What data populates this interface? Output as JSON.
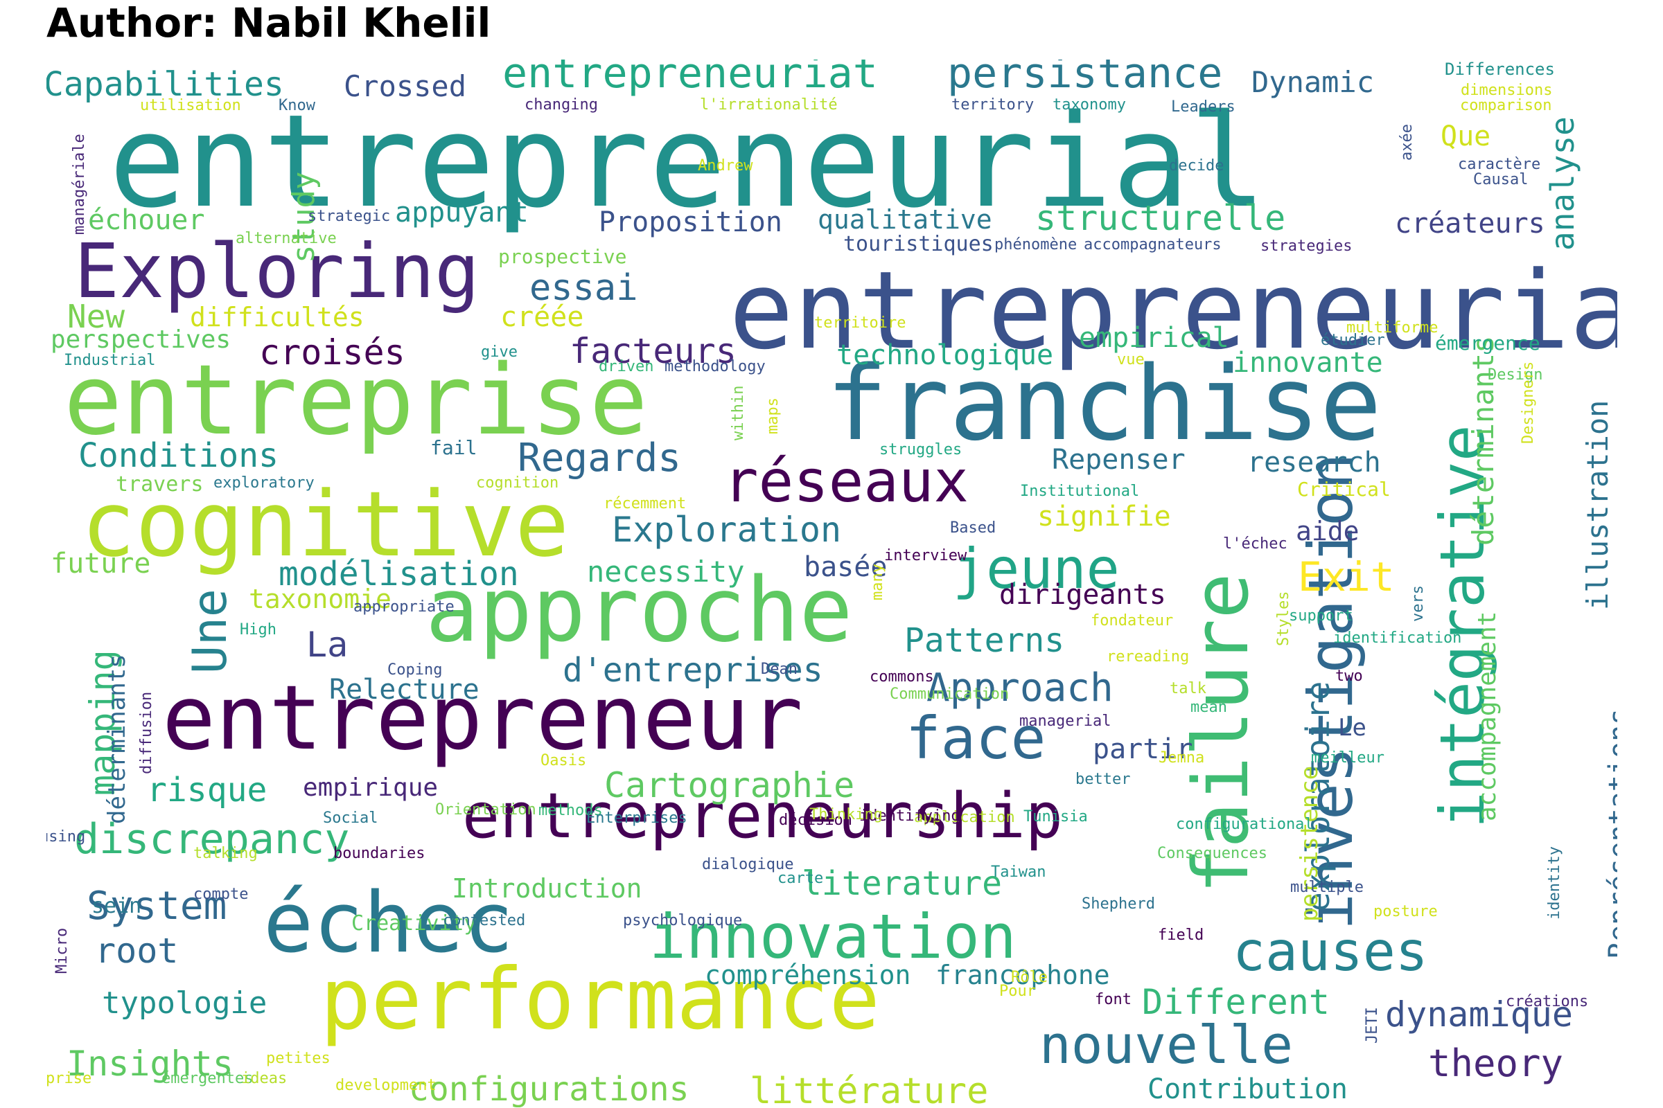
{
  "title": "Author: Nabil Khelil",
  "words": [
    {
      "text": "entrepreneurial",
      "color": "#21918c"
    },
    {
      "text": "entrepreneuriale",
      "color": "#3b528b"
    },
    {
      "text": "franchise",
      "color": "#2c728e"
    },
    {
      "text": "entreprise",
      "color": "#7ad151"
    },
    {
      "text": "cognitive",
      "color": "#b5de2b"
    },
    {
      "text": "approche",
      "color": "#5ec962"
    },
    {
      "text": "entrepreneur",
      "color": "#440154"
    },
    {
      "text": "performance",
      "color": "#d0e11c"
    },
    {
      "text": "échec",
      "color": "#2a788e"
    },
    {
      "text": "failure",
      "color": "#3fbc73"
    },
    {
      "text": "Exploring",
      "color": "#482878"
    },
    {
      "text": "entrepreneurship",
      "color": "#440154"
    },
    {
      "text": "innovation",
      "color": "#35b779"
    },
    {
      "text": "investigation",
      "color": "#31688e"
    },
    {
      "text": "intégrative",
      "color": "#22a884"
    },
    {
      "text": "réseaux",
      "color": "#440154"
    },
    {
      "text": "face",
      "color": "#31688e"
    },
    {
      "text": "jeune",
      "color": "#20a486"
    },
    {
      "text": "causes",
      "color": "#26828e"
    },
    {
      "text": "nouvelle",
      "color": "#2c728e"
    },
    {
      "text": "entrepreneuriat",
      "color": "#22a884"
    },
    {
      "text": "persistance",
      "color": "#2a788e"
    },
    {
      "text": "Capabilities",
      "color": "#21918c"
    },
    {
      "text": "Crossed",
      "color": "#3b528b"
    },
    {
      "text": "Dynamic",
      "color": "#31688e"
    },
    {
      "text": "analyse",
      "color": "#21918c"
    },
    {
      "text": "Que",
      "color": "#d0e11c"
    },
    {
      "text": "structurelle",
      "color": "#35b779"
    },
    {
      "text": "qualitative",
      "color": "#2a788e"
    },
    {
      "text": "créateurs",
      "color": "#414487"
    },
    {
      "text": "Proposition",
      "color": "#3b528b"
    },
    {
      "text": "appuyant",
      "color": "#21918c"
    },
    {
      "text": "échouer",
      "color": "#5ec962"
    },
    {
      "text": "study",
      "color": "#5ec962"
    },
    {
      "text": "essai",
      "color": "#31688e"
    },
    {
      "text": "New",
      "color": "#7ad151"
    },
    {
      "text": "difficultés",
      "color": "#d0e11c"
    },
    {
      "text": "créée",
      "color": "#d0e11c"
    },
    {
      "text": "perspectives",
      "color": "#5ec962"
    },
    {
      "text": "croisés",
      "color": "#440154"
    },
    {
      "text": "facteurs",
      "color": "#482878"
    },
    {
      "text": "technologique",
      "color": "#22a884"
    },
    {
      "text": "empirical",
      "color": "#35b779"
    },
    {
      "text": "innovante",
      "color": "#35b779"
    },
    {
      "text": "déterminants",
      "color": "#5ec962"
    },
    {
      "text": "illustration",
      "color": "#2c728e"
    },
    {
      "text": "Conditions",
      "color": "#21918c"
    },
    {
      "text": "Regards",
      "color": "#31688e"
    },
    {
      "text": "Repenser",
      "color": "#2c728e"
    },
    {
      "text": "research",
      "color": "#2c728e"
    },
    {
      "text": "Exploration",
      "color": "#2a788e"
    },
    {
      "text": "signifie",
      "color": "#d0e11c"
    },
    {
      "text": "aide",
      "color": "#414487"
    },
    {
      "text": "Exit",
      "color": "#fde725"
    },
    {
      "text": "future",
      "color": "#7ad151"
    },
    {
      "text": "modélisation",
      "color": "#21918c"
    },
    {
      "text": "necessity",
      "color": "#35b779"
    },
    {
      "text": "basée",
      "color": "#3b528b"
    },
    {
      "text": "dirigeants",
      "color": "#440154"
    },
    {
      "text": "Une",
      "color": "#26828e"
    },
    {
      "text": "taxonomie",
      "color": "#b5de2b"
    },
    {
      "text": "La",
      "color": "#414487"
    },
    {
      "text": "Patterns",
      "color": "#21918c"
    },
    {
      "text": "mapping",
      "color": "#35b779"
    },
    {
      "text": "d'entreprises",
      "color": "#2c728e"
    },
    {
      "text": "Approach",
      "color": "#31688e"
    },
    {
      "text": "exploratoire",
      "color": "#2c728e"
    },
    {
      "text": "Relecture",
      "color": "#2c728e"
    },
    {
      "text": "déterminants",
      "color": "#31688e"
    },
    {
      "text": "accompagnement",
      "color": "#5ec962"
    },
    {
      "text": "Le",
      "color": "#3b528b"
    },
    {
      "text": "partir",
      "color": "#3b528b"
    },
    {
      "text": "persistence",
      "color": "#b5de2b"
    },
    {
      "text": "Représentations",
      "color": "#31688e"
    },
    {
      "text": "risque",
      "color": "#22a884"
    },
    {
      "text": "empirique",
      "color": "#482878"
    },
    {
      "text": "Cartographie",
      "color": "#5ec962"
    },
    {
      "text": "discrepancy",
      "color": "#35b779"
    },
    {
      "text": "System",
      "color": "#31688e"
    },
    {
      "text": "literature",
      "color": "#35b779"
    },
    {
      "text": "Introduction",
      "color": "#5ec962"
    },
    {
      "text": "root",
      "color": "#31688e"
    },
    {
      "text": "typologie",
      "color": "#21918c"
    },
    {
      "text": "compréhension",
      "color": "#21918c"
    },
    {
      "text": "francophone",
      "color": "#26828e"
    },
    {
      "text": "Different",
      "color": "#35b779"
    },
    {
      "text": "dynamique",
      "color": "#3b528b"
    },
    {
      "text": "Insights",
      "color": "#5ec962"
    },
    {
      "text": "configurations",
      "color": "#7ad151"
    },
    {
      "text": "littérature",
      "color": "#b5de2b"
    },
    {
      "text": "theory",
      "color": "#482878"
    },
    {
      "text": "Contribution",
      "color": "#21918c"
    },
    {
      "text": "utilisation",
      "color": "#d0e11c"
    },
    {
      "text": "Know",
      "color": "#31688e"
    },
    {
      "text": "changing",
      "color": "#482878"
    },
    {
      "text": "l'irrationalité",
      "color": "#b5de2b"
    },
    {
      "text": "territory",
      "color": "#3b528b"
    },
    {
      "text": "taxonomy",
      "color": "#21918c"
    },
    {
      "text": "Leaders",
      "color": "#31688e"
    },
    {
      "text": "Differences",
      "color": "#21918c"
    },
    {
      "text": "dimensions",
      "color": "#d0e11c"
    },
    {
      "text": "comparison",
      "color": "#d0e11c"
    },
    {
      "text": "managériale",
      "color": "#482878"
    },
    {
      "text": "Andrew",
      "color": "#d0e11c"
    },
    {
      "text": "decide",
      "color": "#2c728e"
    },
    {
      "text": "axée",
      "color": "#3b528b"
    },
    {
      "text": "caractère",
      "color": "#3b528b"
    },
    {
      "text": "Causal",
      "color": "#3b528b"
    },
    {
      "text": "strategic",
      "color": "#3b528b"
    },
    {
      "text": "alternative",
      "color": "#7ad151"
    },
    {
      "text": "phénomène",
      "color": "#3b528b"
    },
    {
      "text": "accompagnateurs",
      "color": "#3b528b"
    },
    {
      "text": "strategies",
      "color": "#482878"
    },
    {
      "text": "touristiques",
      "color": "#3b528b"
    },
    {
      "text": "prospective",
      "color": "#7ad151"
    },
    {
      "text": "territoire",
      "color": "#d0e11c"
    },
    {
      "text": "multiforme",
      "color": "#d0e11c"
    },
    {
      "text": "étudier",
      "color": "#2c728e"
    },
    {
      "text": "émergence",
      "color": "#22a884"
    },
    {
      "text": "Industrial",
      "color": "#21918c"
    },
    {
      "text": "give",
      "color": "#21918c"
    },
    {
      "text": "driven",
      "color": "#35b779"
    },
    {
      "text": "methodology",
      "color": "#3b528b"
    },
    {
      "text": "vue",
      "color": "#d0e11c"
    },
    {
      "text": "Design",
      "color": "#5ec962"
    },
    {
      "text": "within",
      "color": "#7ad151"
    },
    {
      "text": "maps",
      "color": "#d0e11c"
    },
    {
      "text": "fail",
      "color": "#2c728e"
    },
    {
      "text": "struggles",
      "color": "#22a884"
    },
    {
      "text": "Designers",
      "color": "#d0e11c"
    },
    {
      "text": "travers",
      "color": "#7ad151"
    },
    {
      "text": "exploratory",
      "color": "#2a788e"
    },
    {
      "text": "cognition",
      "color": "#b5de2b"
    },
    {
      "text": "récemment",
      "color": "#d0e11c"
    },
    {
      "text": "Institutional",
      "color": "#22a884"
    },
    {
      "text": "Critical",
      "color": "#d0e11c"
    },
    {
      "text": "Based",
      "color": "#3b528b"
    },
    {
      "text": "l'échec",
      "color": "#482878"
    },
    {
      "text": "interview",
      "color": "#440154"
    },
    {
      "text": "vers",
      "color": "#2c728e"
    },
    {
      "text": "appropriate",
      "color": "#3b528b"
    },
    {
      "text": "many",
      "color": "#d0e11c"
    },
    {
      "text": "fondateur",
      "color": "#d0e11c"
    },
    {
      "text": "support",
      "color": "#22a884"
    },
    {
      "text": "identification",
      "color": "#22a884"
    },
    {
      "text": "Styles",
      "color": "#b5de2b"
    },
    {
      "text": "High",
      "color": "#22a884"
    },
    {
      "text": "rereading",
      "color": "#d0e11c"
    },
    {
      "text": "Dean",
      "color": "#3b528b"
    },
    {
      "text": "Coping",
      "color": "#3b528b"
    },
    {
      "text": "commons",
      "color": "#440154"
    },
    {
      "text": "two",
      "color": "#440154"
    },
    {
      "text": "talk",
      "color": "#b5de2b"
    },
    {
      "text": "Communication",
      "color": "#7ad151"
    },
    {
      "text": "mean",
      "color": "#35b779"
    },
    {
      "text": "diffusion",
      "color": "#482878"
    },
    {
      "text": "managerial",
      "color": "#482878"
    },
    {
      "text": "meilleur",
      "color": "#22a884"
    },
    {
      "text": "Jemna",
      "color": "#d0e11c"
    },
    {
      "text": "Oasis",
      "color": "#d0e11c"
    },
    {
      "text": "better",
      "color": "#2a788e"
    },
    {
      "text": "methods",
      "color": "#35b779"
    },
    {
      "text": "décision",
      "color": "#440154"
    },
    {
      "text": "application",
      "color": "#b5de2b"
    },
    {
      "text": "identifying",
      "color": "#440154"
    },
    {
      "text": "Thinking",
      "color": "#b5de2b"
    },
    {
      "text": "Tunisia",
      "color": "#22a884"
    },
    {
      "text": "Social",
      "color": "#2a788e"
    },
    {
      "text": "Orientation",
      "color": "#7ad151"
    },
    {
      "text": "Enterprises",
      "color": "#2a788e"
    },
    {
      "text": "configurational",
      "color": "#22a884"
    },
    {
      "text": "posture",
      "color": "#d0e11c"
    },
    {
      "text": "logique",
      "color": "#31688e"
    },
    {
      "text": "using",
      "color": "#3b528b"
    },
    {
      "text": "talking",
      "color": "#b5de2b"
    },
    {
      "text": "boundaries",
      "color": "#440154"
    },
    {
      "text": "Consequences",
      "color": "#5ec962"
    },
    {
      "text": "dialogique",
      "color": "#3b528b"
    },
    {
      "text": "carte",
      "color": "#21918c"
    },
    {
      "text": "Taiwan",
      "color": "#21918c"
    },
    {
      "text": "identity",
      "color": "#2c728e"
    },
    {
      "text": "multiple",
      "color": "#3b528b"
    },
    {
      "text": "Micro",
      "color": "#482878"
    },
    {
      "text": "compte",
      "color": "#3b528b"
    },
    {
      "text": "sein",
      "color": "#2a788e"
    },
    {
      "text": "Shepherd",
      "color": "#2c728e"
    },
    {
      "text": "field",
      "color": "#440154"
    },
    {
      "text": "Creativity",
      "color": "#5ec962"
    },
    {
      "text": "contested",
      "color": "#2c728e"
    },
    {
      "text": "psychologique",
      "color": "#3b528b"
    },
    {
      "text": "Rôle",
      "color": "#d0e11c"
    },
    {
      "text": "Pour",
      "color": "#d0e11c"
    },
    {
      "text": "font",
      "color": "#440154"
    },
    {
      "text": "créations",
      "color": "#482878"
    },
    {
      "text": "JETI",
      "color": "#3b528b"
    },
    {
      "text": "petites",
      "color": "#d0e11c"
    },
    {
      "text": "prise",
      "color": "#d0e11c"
    },
    {
      "text": "émergentes",
      "color": "#5ec962"
    },
    {
      "text": "ideas",
      "color": "#b5de2b"
    },
    {
      "text": "development",
      "color": "#d0e11c"
    }
  ]
}
